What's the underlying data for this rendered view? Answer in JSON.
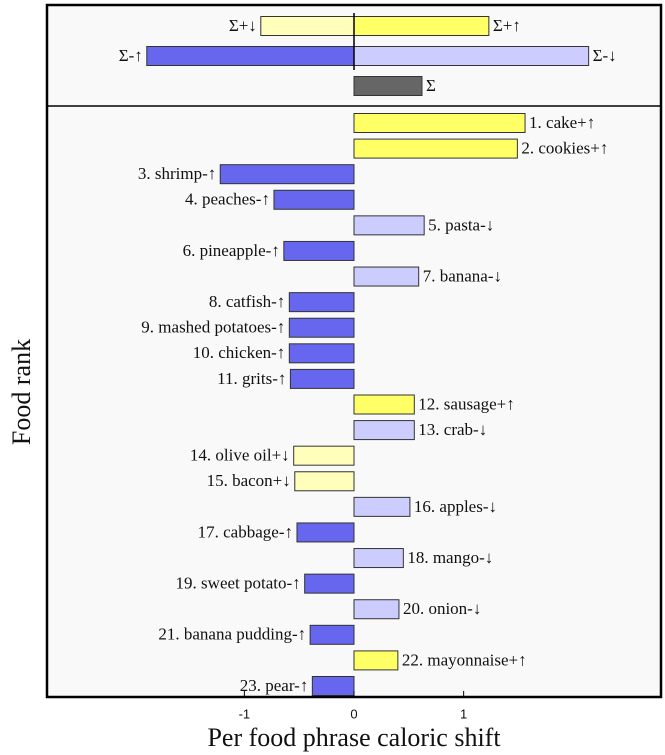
{
  "chart_data": {
    "type": "bar",
    "orientation": "horizontal",
    "xlabel": "Per food phrase caloric shift",
    "ylabel": "Food rank",
    "xlim": [
      -2.8,
      2.8
    ],
    "xticks": [
      -1,
      0,
      1
    ],
    "summary": {
      "categories": [
        "Σ+↓",
        "Σ+↑",
        "Σ-↑",
        "Σ-↓",
        "Σ"
      ],
      "values": [
        -0.85,
        1.23,
        -1.89,
        2.14,
        0.62
      ],
      "colors": [
        "#ffffbb",
        "#ffff66",
        "#6666ee",
        "#ccccff",
        "#666666"
      ]
    },
    "categories": [
      "1. cake+↑",
      "2. cookies+↑",
      "3. shrimp-↑",
      "4. peaches-↑",
      "5. pasta-↓",
      "6. pineapple-↑",
      "7. banana-↓",
      "8. catfish-↑",
      "9. mashed potatoes-↑",
      "10. chicken-↑",
      "11. grits-↑",
      "12. sausage+↑",
      "13. crab-↓",
      "14. olive oil+↓",
      "15. bacon+↓",
      "16. apples-↓",
      "17. cabbage-↑",
      "18. mango-↓",
      "19. sweet potato-↑",
      "20. onion-↓",
      "21. banana pudding-↑",
      "22. mayonnaise+↑",
      "23. pear-↑"
    ],
    "values": [
      1.56,
      1.49,
      -1.22,
      -0.73,
      0.64,
      -0.64,
      0.59,
      -0.59,
      -0.59,
      -0.59,
      -0.58,
      0.55,
      0.55,
      -0.55,
      -0.54,
      0.51,
      -0.52,
      0.45,
      -0.45,
      0.41,
      -0.4,
      0.4,
      -0.38
    ],
    "colors": [
      "#ffff66",
      "#ffff66",
      "#6666ee",
      "#6666ee",
      "#ccccff",
      "#6666ee",
      "#ccccff",
      "#6666ee",
      "#6666ee",
      "#6666ee",
      "#6666ee",
      "#ffff66",
      "#ccccff",
      "#ffffbb",
      "#ffffbb",
      "#ccccff",
      "#6666ee",
      "#ccccff",
      "#6666ee",
      "#ccccff",
      "#6666ee",
      "#ffff66",
      "#6666ee"
    ]
  }
}
